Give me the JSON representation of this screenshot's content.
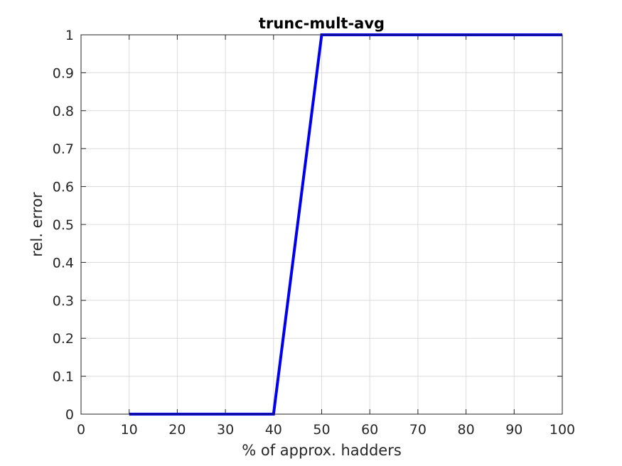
{
  "chart_data": {
    "type": "line",
    "title": "trunc-mult-avg",
    "xlabel": "% of approx. hadders",
    "ylabel": "rel. error",
    "xlim": [
      0,
      100
    ],
    "ylim": [
      0,
      1
    ],
    "xticks": [
      0,
      10,
      20,
      30,
      40,
      50,
      60,
      70,
      80,
      90,
      100
    ],
    "yticks": [
      0,
      0.1,
      0.2,
      0.3,
      0.4,
      0.5,
      0.6,
      0.7,
      0.8,
      0.9,
      1
    ],
    "xtick_labels": [
      "0",
      "10",
      "20",
      "30",
      "40",
      "50",
      "60",
      "70",
      "80",
      "90",
      "100"
    ],
    "ytick_labels": [
      "0",
      "0.1",
      "0.2",
      "0.3",
      "0.4",
      "0.5",
      "0.6",
      "0.7",
      "0.8",
      "0.9",
      "1"
    ],
    "grid": true,
    "series": [
      {
        "color": "#0000ee",
        "x": [
          10,
          20,
          30,
          40,
          50,
          60,
          70,
          80,
          90,
          100
        ],
        "y": [
          0,
          0,
          0,
          0,
          1,
          1,
          1,
          1,
          1,
          1
        ]
      }
    ]
  }
}
